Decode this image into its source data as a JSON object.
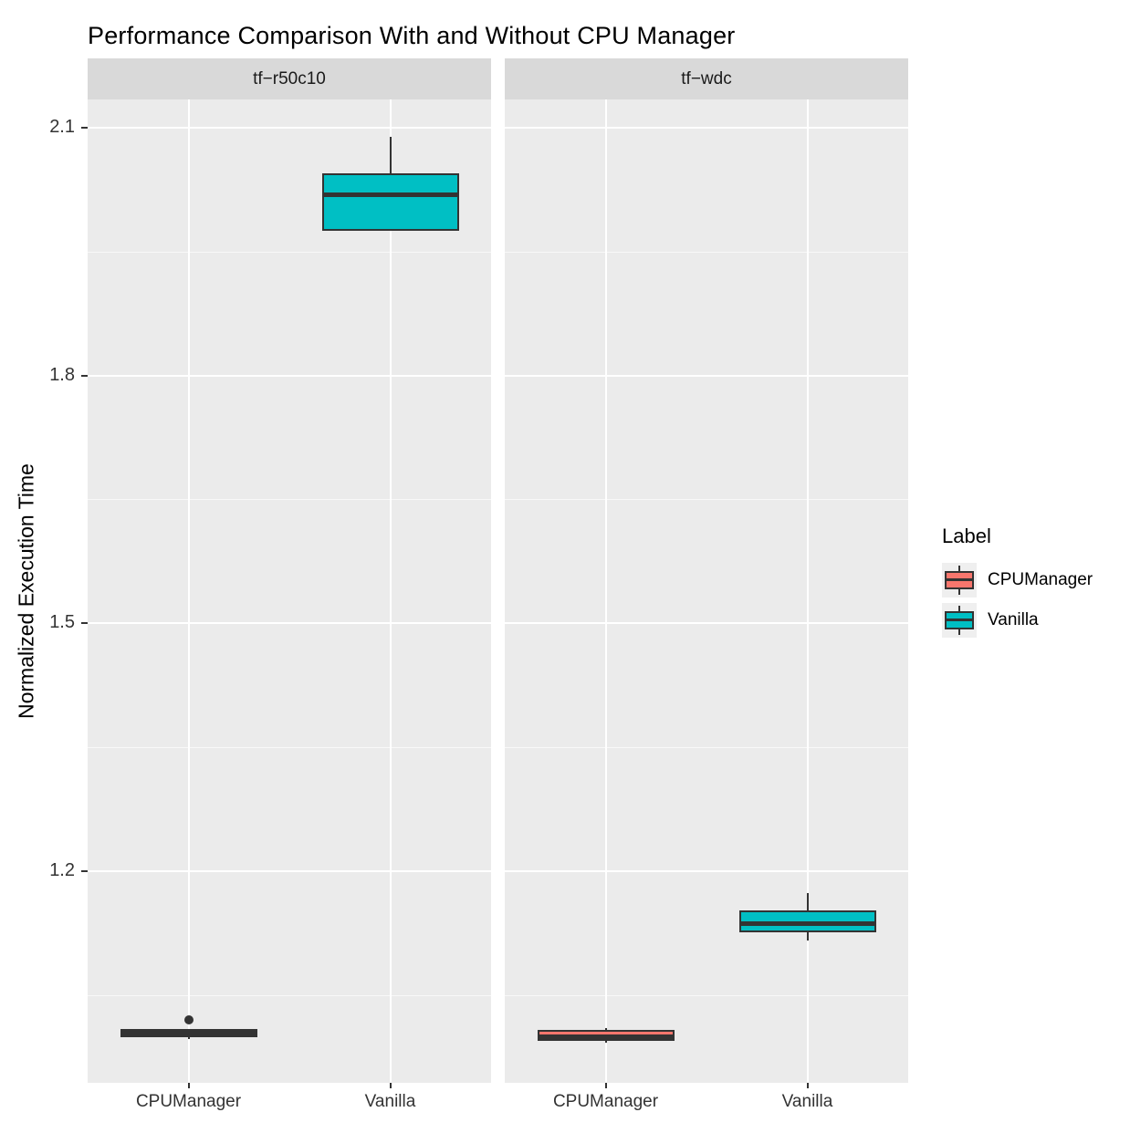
{
  "title": "Performance Comparison With and Without CPU Manager",
  "y_axis_title": "Normalized Execution Time",
  "colors": {
    "cpumanager_fill": "#F8766D",
    "vanilla_fill": "#00BFC4",
    "box_border": "#333333",
    "panel_bg": "#EBEBEB",
    "strip_bg": "#D9D9D9",
    "grid": "#FFFFFF"
  },
  "legend": {
    "title": "Label",
    "items": [
      {
        "label": "CPUManager",
        "color": "#F8766D"
      },
      {
        "label": "Vanilla",
        "color": "#00BFC4"
      }
    ]
  },
  "chart_data": {
    "type": "boxplot",
    "title": "Performance Comparison With and Without CPU Manager",
    "ylabel": "Normalized Execution Time",
    "xlabel": "",
    "ylim": [
      0.944,
      2.134
    ],
    "y_ticks": [
      1.2,
      1.5,
      1.8,
      2.1
    ],
    "y_minor_gridlines": [
      1.05,
      1.35,
      1.65,
      1.95
    ],
    "grid": "on",
    "legend_position": "right",
    "color_map": {
      "CPUManager": "#F8766D",
      "Vanilla": "#00BFC4"
    },
    "facets": [
      {
        "label": "tf−r50c10",
        "categories": [
          "CPUManager",
          "Vanilla"
        ],
        "boxes": [
          {
            "category": "CPUManager",
            "group": "CPUManager",
            "whisker_low": 0.997,
            "q1": 0.999,
            "median": 1.004,
            "q3": 1.009,
            "whisker_high": 1.01,
            "outliers": [
              1.02
            ]
          },
          {
            "category": "Vanilla",
            "group": "Vanilla",
            "whisker_low": 1.975,
            "q1": 1.975,
            "median": 2.019,
            "q3": 2.045,
            "whisker_high": 2.089,
            "outliers": []
          }
        ]
      },
      {
        "label": "tf−wdc",
        "categories": [
          "CPUManager",
          "Vanilla"
        ],
        "boxes": [
          {
            "category": "CPUManager",
            "group": "CPUManager",
            "whisker_low": 0.993,
            "q1": 0.995,
            "median": 1.0,
            "q3": 1.008,
            "whisker_high": 1.01,
            "outliers": []
          },
          {
            "category": "Vanilla",
            "group": "Vanilla",
            "whisker_low": 1.116,
            "q1": 1.126,
            "median": 1.137,
            "q3": 1.153,
            "whisker_high": 1.174,
            "outliers": []
          }
        ]
      }
    ]
  }
}
